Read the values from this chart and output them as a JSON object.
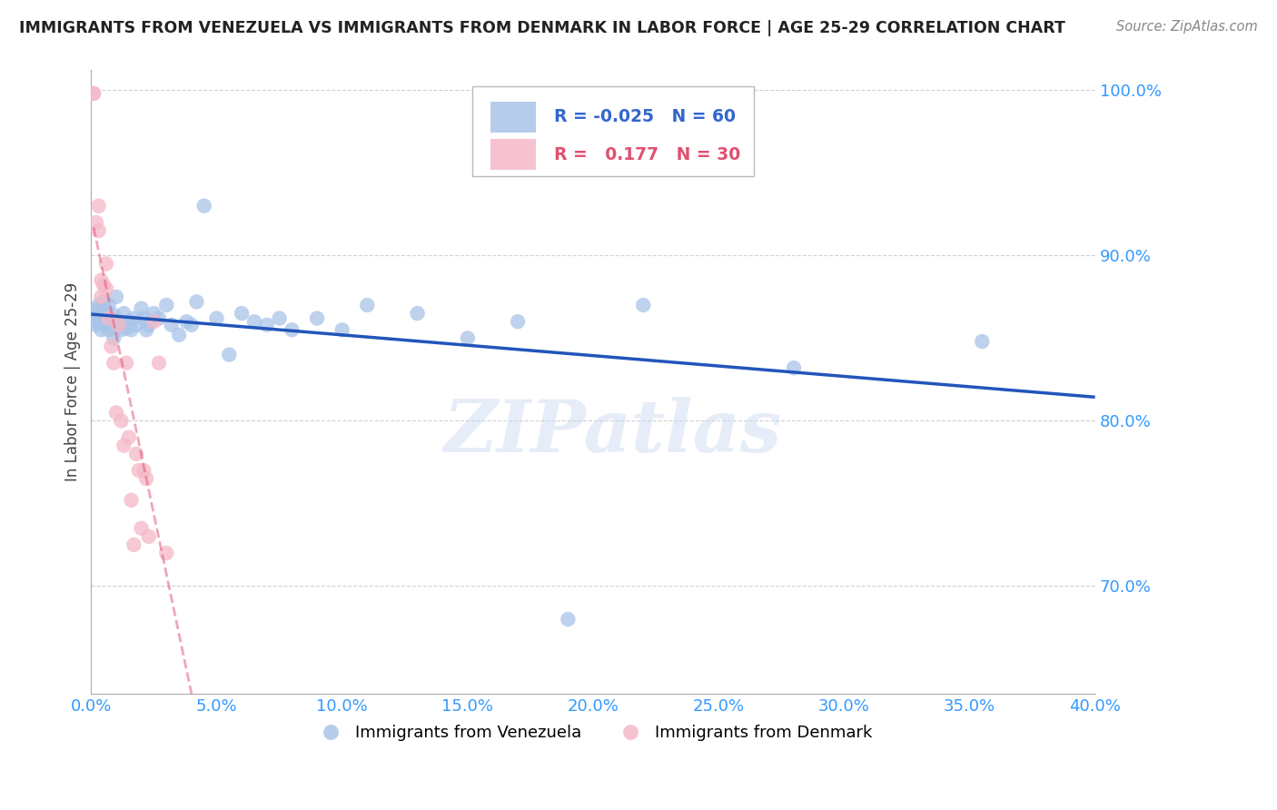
{
  "title": "IMMIGRANTS FROM VENEZUELA VS IMMIGRANTS FROM DENMARK IN LABOR FORCE | AGE 25-29 CORRELATION CHART",
  "source": "Source: ZipAtlas.com",
  "ylabel": "In Labor Force | Age 25-29",
  "legend_label1": "Immigrants from Venezuela",
  "legend_label2": "Immigrants from Denmark",
  "xlim": [
    0.0,
    0.4
  ],
  "ylim": [
    0.635,
    1.012
  ],
  "yticks": [
    0.7,
    0.8,
    0.9,
    1.0
  ],
  "xticks": [
    0.0,
    0.05,
    0.1,
    0.15,
    0.2,
    0.25,
    0.3,
    0.35,
    0.4
  ],
  "venezuela_color": "#a8c4e8",
  "denmark_color": "#f5b8c8",
  "trendline_venezuela_color": "#2255bb",
  "trendline_denmark_color": "#e05070",
  "trendline_denmark_dashed": true,
  "background_color": "#ffffff",
  "venezuela_x": [
    0.001,
    0.001,
    0.002,
    0.002,
    0.003,
    0.003,
    0.003,
    0.004,
    0.004,
    0.005,
    0.005,
    0.005,
    0.006,
    0.006,
    0.007,
    0.007,
    0.008,
    0.008,
    0.009,
    0.009,
    0.01,
    0.01,
    0.011,
    0.012,
    0.013,
    0.014,
    0.015,
    0.016,
    0.017,
    0.018,
    0.02,
    0.021,
    0.022,
    0.023,
    0.025,
    0.027,
    0.03,
    0.032,
    0.035,
    0.038,
    0.04,
    0.042,
    0.045,
    0.05,
    0.055,
    0.06,
    0.065,
    0.07,
    0.075,
    0.08,
    0.09,
    0.1,
    0.11,
    0.13,
    0.15,
    0.17,
    0.19,
    0.22,
    0.28,
    0.355
  ],
  "venezuela_y": [
    0.86,
    0.862,
    0.858,
    0.865,
    0.87,
    0.862,
    0.868,
    0.855,
    0.865,
    0.86,
    0.872,
    0.858,
    0.866,
    0.86,
    0.855,
    0.87,
    0.858,
    0.862,
    0.864,
    0.85,
    0.86,
    0.875,
    0.858,
    0.855,
    0.865,
    0.856,
    0.86,
    0.855,
    0.862,
    0.858,
    0.868,
    0.862,
    0.855,
    0.858,
    0.865,
    0.862,
    0.87,
    0.858,
    0.852,
    0.86,
    0.858,
    0.872,
    0.93,
    0.862,
    0.84,
    0.865,
    0.86,
    0.858,
    0.862,
    0.855,
    0.862,
    0.855,
    0.87,
    0.865,
    0.85,
    0.86,
    0.68,
    0.87,
    0.832,
    0.848
  ],
  "denmark_x": [
    0.001,
    0.001,
    0.002,
    0.003,
    0.003,
    0.004,
    0.004,
    0.005,
    0.006,
    0.006,
    0.007,
    0.008,
    0.009,
    0.01,
    0.011,
    0.012,
    0.013,
    0.014,
    0.015,
    0.016,
    0.017,
    0.018,
    0.019,
    0.02,
    0.021,
    0.022,
    0.023,
    0.025,
    0.027,
    0.03
  ],
  "denmark_y": [
    0.998,
    0.998,
    0.92,
    0.915,
    0.93,
    0.885,
    0.875,
    0.882,
    0.88,
    0.895,
    0.862,
    0.845,
    0.835,
    0.805,
    0.858,
    0.8,
    0.785,
    0.835,
    0.79,
    0.752,
    0.725,
    0.78,
    0.77,
    0.735,
    0.77,
    0.765,
    0.73,
    0.86,
    0.835,
    0.72
  ]
}
